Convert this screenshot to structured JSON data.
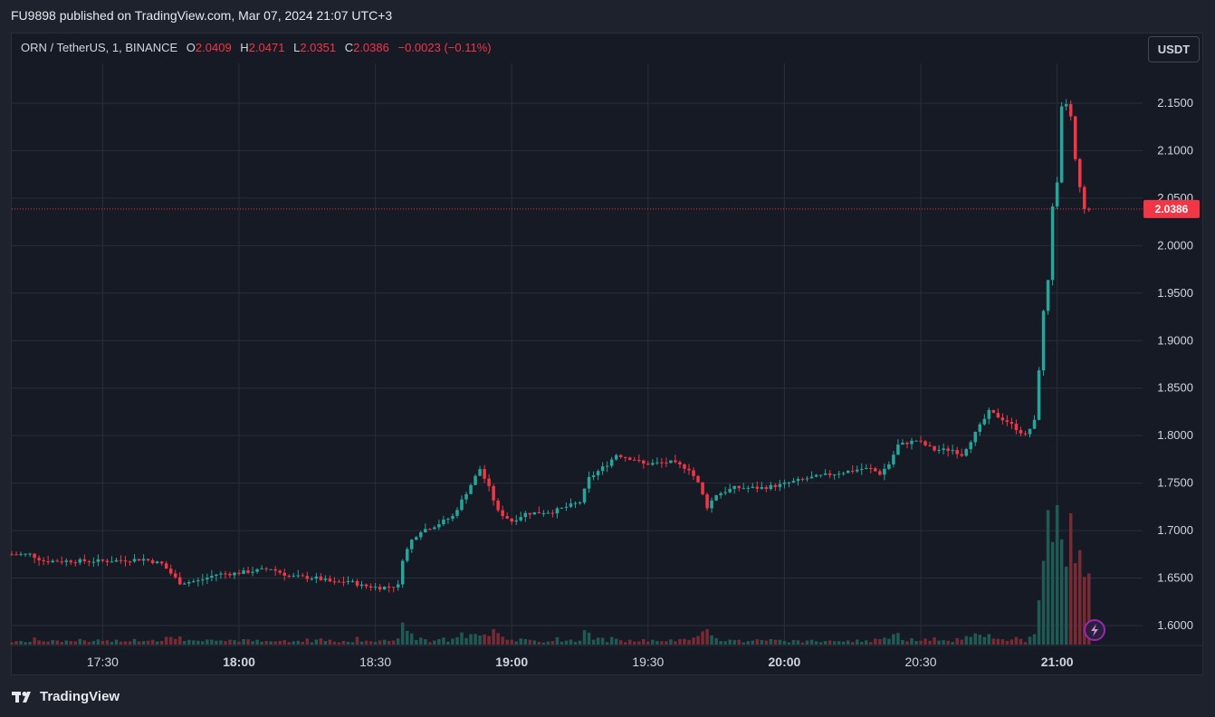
{
  "header": {
    "published": "FU9898 published on TradingView.com, Mar 07, 2024 21:07 UTC+3"
  },
  "legend": {
    "symbol": "ORN / TetherUS, 1, BINANCE",
    "open_label": "O",
    "open": "2.0409",
    "high_label": "H",
    "high": "2.0471",
    "low_label": "L",
    "low": "2.0351",
    "close_label": "C",
    "close": "2.0386",
    "change": "−0.0023 (−0.11%)"
  },
  "currency_button": "USDT",
  "footer": {
    "brand": "TradingView",
    "logo_icon": "tradingview-logo-icon"
  },
  "colors": {
    "up": "#26a69a",
    "down": "#f23645",
    "background": "#161a25",
    "grid": "#2a2e39",
    "up_volume": "#1f5a55",
    "down_volume": "#7a2a33"
  },
  "chart_data": {
    "type": "candlestick",
    "interval": "1 minute",
    "y_axis": {
      "range": [
        1.58,
        2.19
      ],
      "ticks": [
        "2.1500",
        "2.1000",
        "2.0500",
        "2.0000",
        "1.9500",
        "1.9000",
        "1.8500",
        "1.8000",
        "1.7500",
        "1.7000",
        "1.6500",
        "1.6000"
      ],
      "tick_values": [
        2.15,
        2.1,
        2.05,
        2.0,
        1.95,
        1.9,
        1.85,
        1.8,
        1.75,
        1.7,
        1.65,
        1.6
      ]
    },
    "x_axis": {
      "ticks": [
        "17:30",
        "18:00",
        "18:30",
        "19:00",
        "19:30",
        "20:00",
        "20:30",
        "21:00"
      ],
      "bold_ticks": [
        "18:00",
        "19:00",
        "20:00",
        "21:00"
      ]
    },
    "last_price_label": "2.0386",
    "last_price": 2.0386,
    "price_path": [
      {
        "t": "17:10",
        "p": 1.675
      },
      {
        "t": "17:15",
        "p": 1.675
      },
      {
        "t": "17:18",
        "p": 1.668
      },
      {
        "t": "17:25",
        "p": 1.668
      },
      {
        "t": "17:32",
        "p": 1.668
      },
      {
        "t": "17:40",
        "p": 1.67
      },
      {
        "t": "17:44",
        "p": 1.665
      },
      {
        "t": "17:48",
        "p": 1.645
      },
      {
        "t": "17:52",
        "p": 1.647
      },
      {
        "t": "17:56",
        "p": 1.654
      },
      {
        "t": "18:00",
        "p": 1.655
      },
      {
        "t": "18:05",
        "p": 1.658
      },
      {
        "t": "18:08",
        "p": 1.66
      },
      {
        "t": "18:12",
        "p": 1.652
      },
      {
        "t": "18:18",
        "p": 1.65
      },
      {
        "t": "18:22",
        "p": 1.645
      },
      {
        "t": "18:25",
        "p": 1.647
      },
      {
        "t": "18:28",
        "p": 1.642
      },
      {
        "t": "18:32",
        "p": 1.64
      },
      {
        "t": "18:36",
        "p": 1.642
      },
      {
        "t": "18:37",
        "p": 1.67
      },
      {
        "t": "18:39",
        "p": 1.69
      },
      {
        "t": "18:41",
        "p": 1.7
      },
      {
        "t": "18:44",
        "p": 1.705
      },
      {
        "t": "18:48",
        "p": 1.715
      },
      {
        "t": "18:51",
        "p": 1.74
      },
      {
        "t": "18:54",
        "p": 1.765
      },
      {
        "t": "18:56",
        "p": 1.745
      },
      {
        "t": "18:58",
        "p": 1.72
      },
      {
        "t": "19:01",
        "p": 1.71
      },
      {
        "t": "19:04",
        "p": 1.718
      },
      {
        "t": "19:10",
        "p": 1.72
      },
      {
        "t": "19:16",
        "p": 1.73
      },
      {
        "t": "19:18",
        "p": 1.755
      },
      {
        "t": "19:22",
        "p": 1.77
      },
      {
        "t": "19:24",
        "p": 1.78
      },
      {
        "t": "19:28",
        "p": 1.775
      },
      {
        "t": "19:30",
        "p": 1.77
      },
      {
        "t": "19:36",
        "p": 1.772
      },
      {
        "t": "19:40",
        "p": 1.765
      },
      {
        "t": "19:42",
        "p": 1.75
      },
      {
        "t": "19:44",
        "p": 1.725
      },
      {
        "t": "19:46",
        "p": 1.738
      },
      {
        "t": "19:50",
        "p": 1.745
      },
      {
        "t": "19:56",
        "p": 1.745
      },
      {
        "t": "20:00",
        "p": 1.748
      },
      {
        "t": "20:06",
        "p": 1.755
      },
      {
        "t": "20:12",
        "p": 1.76
      },
      {
        "t": "20:18",
        "p": 1.765
      },
      {
        "t": "20:20",
        "p": 1.765
      },
      {
        "t": "20:22",
        "p": 1.76
      },
      {
        "t": "20:24",
        "p": 1.77
      },
      {
        "t": "20:26",
        "p": 1.79
      },
      {
        "t": "20:30",
        "p": 1.795
      },
      {
        "t": "20:34",
        "p": 1.785
      },
      {
        "t": "20:38",
        "p": 1.785
      },
      {
        "t": "20:40",
        "p": 1.78
      },
      {
        "t": "20:42",
        "p": 1.795
      },
      {
        "t": "20:44",
        "p": 1.81
      },
      {
        "t": "20:46",
        "p": 1.825
      },
      {
        "t": "20:50",
        "p": 1.815
      },
      {
        "t": "20:54",
        "p": 1.8
      },
      {
        "t": "20:56",
        "p": 1.815
      },
      {
        "t": "20:57",
        "p": 1.87
      },
      {
        "t": "20:58",
        "p": 1.93
      },
      {
        "t": "20:59",
        "p": 1.965
      },
      {
        "t": "21:00",
        "p": 2.04
      },
      {
        "t": "21:01",
        "p": 2.065
      },
      {
        "t": "21:02",
        "p": 2.145
      },
      {
        "t": "21:03",
        "p": 2.15
      },
      {
        "t": "21:04",
        "p": 2.135
      },
      {
        "t": "21:05",
        "p": 2.09
      },
      {
        "t": "21:06",
        "p": 2.06
      },
      {
        "t": "21:07",
        "p": 2.0386
      }
    ]
  }
}
